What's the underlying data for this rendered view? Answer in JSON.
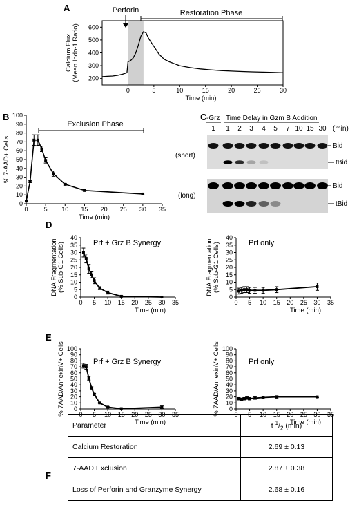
{
  "panels": {
    "A": "A",
    "B": "B",
    "C": "C",
    "D": "D",
    "E": "E",
    "F": "F"
  },
  "panel_a": {
    "arrow_label": "Perforin",
    "phase_label": "Restoration Phase"
  },
  "panel_b": {
    "phase_label": "Exclusion Phase"
  },
  "panel_c": {
    "col_neg": "-Grz",
    "col_header": "Time Delay in Gzm B Addition",
    "lanes": [
      "1",
      "1",
      "2",
      "3",
      "4",
      "5",
      "7",
      "10",
      "15",
      "30"
    ],
    "unit": "(min)",
    "row_short": "(short)",
    "row_long": "(long)",
    "band_bid": "Bid",
    "band_tbid": "tBid",
    "tbid_short_intensity": [
      0,
      1.0,
      0.8,
      0.25,
      0.12,
      0,
      0,
      0,
      0,
      0
    ],
    "tbid_long_intensity": [
      0,
      1.0,
      1.0,
      0.85,
      0.55,
      0.35,
      0,
      0,
      0,
      0
    ]
  },
  "chart_data": [
    {
      "id": "A",
      "type": "line",
      "xlabel": "Time (min)",
      "ylabel": "Calcium Flux (Mean Indo-1 Ratio)",
      "xlim": [
        -5,
        30
      ],
      "ylim": [
        150,
        650
      ],
      "xticks": [
        0,
        5,
        10,
        15,
        20,
        25,
        30
      ],
      "yticks": [
        200,
        300,
        400,
        500,
        600
      ],
      "shaded_region": [
        0,
        3
      ],
      "series": [
        {
          "x": [
            -5,
            -4,
            -3,
            -2,
            -1,
            -0.2,
            0,
            0.5,
            1,
            1.5,
            2,
            2.5,
            3,
            3.5,
            4,
            5,
            6,
            7,
            8,
            9,
            10,
            12,
            14,
            16,
            18,
            20,
            22,
            24,
            26,
            28,
            30
          ],
          "values": [
            215,
            218,
            220,
            225,
            235,
            245,
            330,
            340,
            360,
            400,
            460,
            530,
            565,
            555,
            510,
            450,
            390,
            350,
            330,
            315,
            300,
            285,
            275,
            268,
            262,
            258,
            255,
            252,
            250,
            248,
            245
          ]
        }
      ]
    },
    {
      "id": "B",
      "type": "line",
      "xlabel": "Time (min)",
      "ylabel": "% 7-AAD+ Cells",
      "xlim": [
        0,
        35
      ],
      "ylim": [
        0,
        100
      ],
      "xticks": [
        0,
        5,
        10,
        15,
        20,
        25,
        30,
        35
      ],
      "yticks": [
        0,
        10,
        20,
        30,
        40,
        50,
        60,
        70,
        80,
        90,
        100
      ],
      "phase_range": [
        3,
        30
      ],
      "series": [
        {
          "x": [
            0,
            1,
            2,
            3,
            4,
            5,
            7,
            10,
            15,
            30
          ],
          "values": [
            3,
            25,
            72,
            72,
            62,
            49,
            34,
            22,
            15,
            11
          ],
          "err": [
            0,
            1,
            6,
            6,
            3,
            3,
            3,
            1,
            1,
            1
          ]
        }
      ]
    },
    {
      "id": "D-left",
      "type": "line",
      "title": "Prf + Grz B Synergy",
      "xlabel": "Time (min)",
      "ylabel": "DNA Fragmentation (% Sub-G1 Cells)",
      "xlim": [
        0,
        35
      ],
      "ylim": [
        0,
        40
      ],
      "xticks": [
        0,
        5,
        10,
        15,
        20,
        25,
        30,
        35
      ],
      "yticks": [
        0,
        5,
        10,
        15,
        20,
        25,
        30,
        35,
        40
      ],
      "series": [
        {
          "x": [
            1,
            2,
            3,
            4,
            5,
            7,
            10,
            15,
            30
          ],
          "values": [
            30,
            26,
            19,
            15,
            11,
            6,
            3,
            0.5,
            0
          ],
          "err": [
            3,
            3,
            3,
            2,
            2,
            1,
            1,
            0.5,
            0
          ]
        }
      ]
    },
    {
      "id": "D-right",
      "type": "line",
      "title": "Prf only",
      "xlabel": "Time (min)",
      "ylabel": "DNA Fragmentation (% Sub-G1 Cells)",
      "xlim": [
        0,
        35
      ],
      "ylim": [
        0,
        40
      ],
      "xticks": [
        0,
        5,
        10,
        15,
        20,
        25,
        30,
        35
      ],
      "yticks": [
        0,
        5,
        10,
        15,
        20,
        25,
        30,
        35,
        40
      ],
      "series": [
        {
          "x": [
            1,
            2,
            3,
            4,
            5,
            7,
            10,
            15,
            30
          ],
          "values": [
            4,
            4.5,
            5,
            5,
            4.5,
            4.5,
            4.5,
            5,
            7
          ],
          "err": [
            2,
            2,
            2,
            2,
            2,
            2,
            2,
            2,
            2.5
          ]
        }
      ]
    },
    {
      "id": "E-left",
      "type": "line",
      "title": "Prf + Grz B Synergy",
      "xlabel": "Time (min)",
      "ylabel": "% 7AAD/AnnexinV+ Cells",
      "xlim": [
        0,
        35
      ],
      "ylim": [
        0,
        100
      ],
      "xticks": [
        0,
        5,
        10,
        15,
        20,
        25,
        30,
        35
      ],
      "yticks": [
        0,
        10,
        20,
        30,
        40,
        50,
        60,
        70,
        80,
        90,
        100
      ],
      "series": [
        {
          "x": [
            1,
            2,
            3,
            4,
            5,
            7,
            10,
            15,
            30
          ],
          "values": [
            72,
            70,
            51,
            35,
            24,
            10,
            3,
            0.5,
            3
          ],
          "err": [
            4,
            4,
            3,
            2,
            2,
            1,
            1,
            0.5,
            2
          ]
        }
      ]
    },
    {
      "id": "E-right",
      "type": "line",
      "title": "Prf only",
      "xlabel": "Time (min)",
      "ylabel": "% 7AAD/AnnexinV+ Cells",
      "xlim": [
        0,
        35
      ],
      "ylim": [
        0,
        100
      ],
      "xticks": [
        0,
        5,
        10,
        15,
        20,
        25,
        30,
        35
      ],
      "yticks": [
        0,
        10,
        20,
        30,
        40,
        50,
        60,
        70,
        80,
        90,
        100
      ],
      "series": [
        {
          "x": [
            1,
            2,
            3,
            4,
            5,
            7,
            10,
            15,
            30
          ],
          "values": [
            17,
            16,
            17,
            18,
            17,
            18,
            19,
            20,
            20
          ],
          "err": [
            2,
            2,
            2,
            2,
            2,
            2,
            2,
            2,
            1
          ]
        }
      ]
    }
  ],
  "table": {
    "header_param": "Parameter",
    "header_t": "t",
    "header_sup": "1",
    "header_sub": "2",
    "header_unit": "(min)",
    "rows": [
      {
        "param": "Calcium Restoration",
        "value": "2.69 ± 0.13"
      },
      {
        "param": "7-AAD Exclusion",
        "value": "2.87 ± 0.38"
      },
      {
        "param": "Loss of Perforin and Granzyme Synergy",
        "value": "2.68 ± 0.16"
      }
    ]
  }
}
